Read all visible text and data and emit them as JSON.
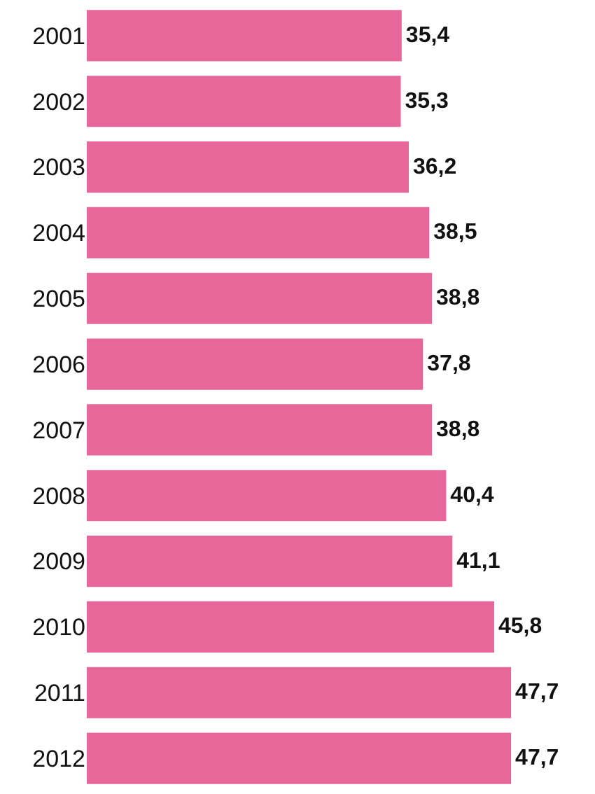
{
  "chart_data": {
    "type": "bar",
    "orientation": "horizontal",
    "categories": [
      "2001",
      "2002",
      "2003",
      "2004",
      "2005",
      "2006",
      "2007",
      "2008",
      "2009",
      "2010",
      "2011",
      "2012"
    ],
    "values": [
      35.4,
      35.3,
      36.2,
      38.5,
      38.8,
      37.8,
      38.8,
      40.4,
      41.1,
      45.8,
      47.7,
      47.7
    ],
    "value_labels": [
      "35,4",
      "35,3",
      "36,2",
      "38,5",
      "38,8",
      "37,8",
      "38,8",
      "40,4",
      "41,1",
      "45,8",
      "47,7",
      "47,7"
    ],
    "color": "#e8679b",
    "tick_labels": "y",
    "grid": false,
    "legend": false
  }
}
